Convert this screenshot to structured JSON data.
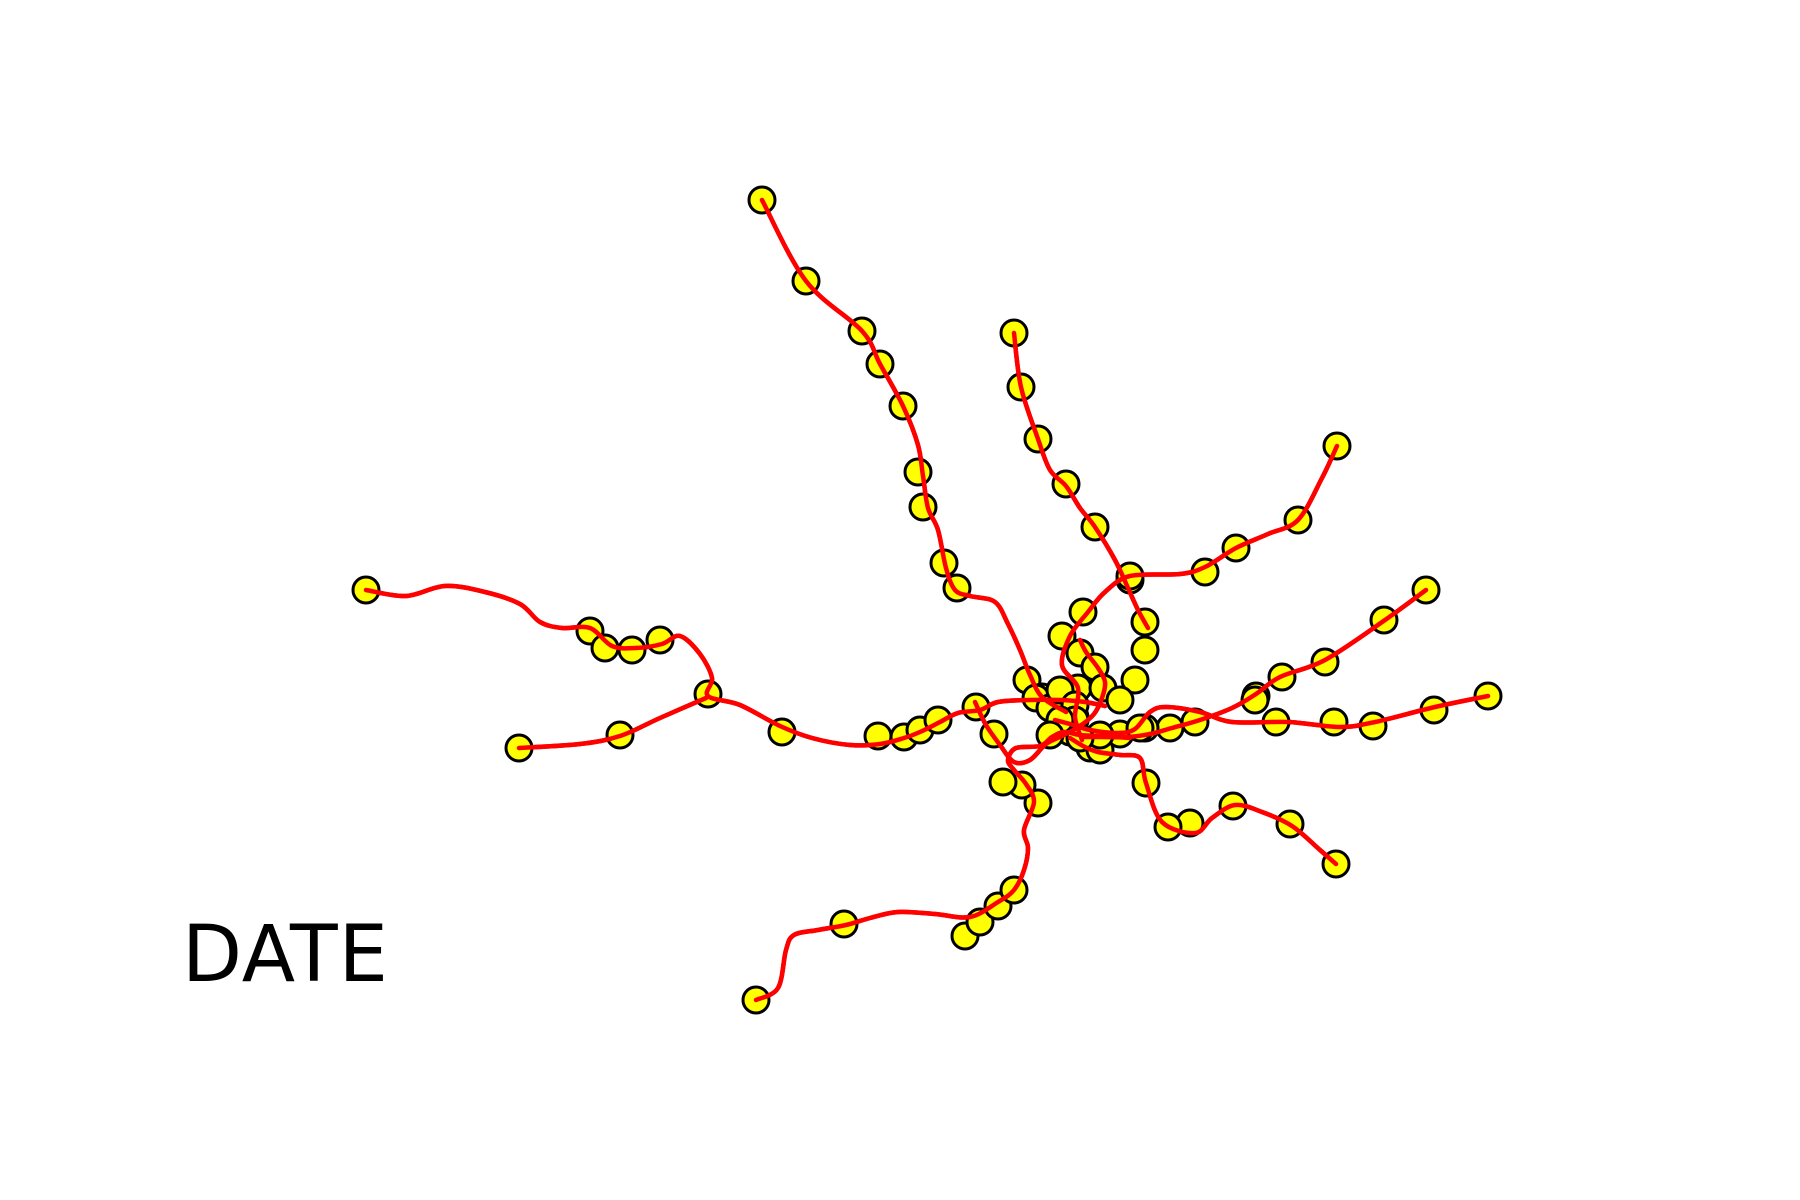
{
  "caption": "DATE",
  "colors": {
    "route": "#ff0000",
    "station_fill": "#ffff00",
    "station_stroke": "#000000",
    "background": "#ffffff"
  }
}
